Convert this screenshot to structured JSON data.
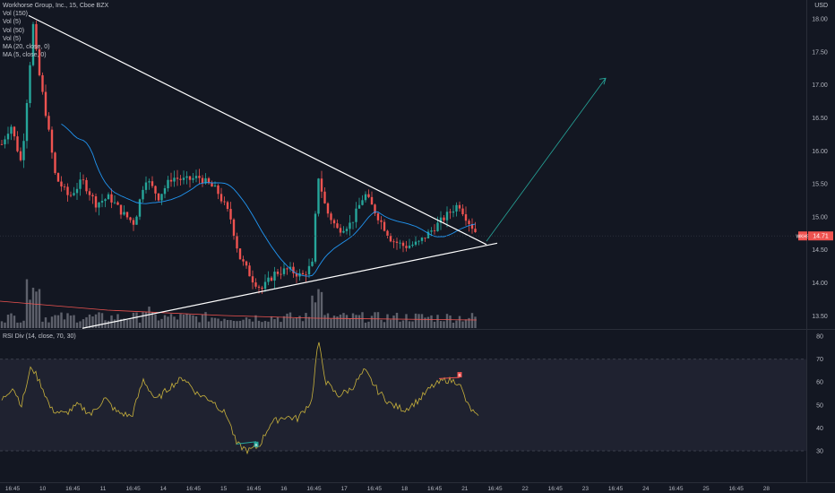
{
  "header": {
    "symbol": "Workhorse Group, Inc., 15, Cboe BZX",
    "currency": "USD",
    "studies": [
      "Vol (150)",
      "Vol (5)",
      "Vol (50)",
      "Vol (5)",
      "MA (20, close, 0)",
      "MA (5, close, 0)"
    ],
    "indicator": "RSI Div (14, close, 70, 30)"
  },
  "price_tag": {
    "label": "WKHS",
    "value": "14.71"
  },
  "colors": {
    "background": "#131722",
    "up": "#26a69a",
    "down": "#ef5350",
    "ma20": "#2196f3",
    "ma5": "#ffffff",
    "volume": "#787b86",
    "rsi": "#c9b23c",
    "divergence_bull": "#26a69a",
    "divergence_bear": "#ef5350"
  },
  "chart_data": [
    {
      "type": "candlestick",
      "title": "Workhorse Group, Inc., 15, Cboe BZX",
      "y_axis": {
        "ticks": [
          18.0,
          17.5,
          17.0,
          16.5,
          16.0,
          15.5,
          15.0,
          14.5,
          14.0,
          13.5
        ],
        "ylim": [
          13.3,
          18.2
        ],
        "position": "right"
      },
      "x_axis": {
        "ticks": [
          "16:45",
          "10",
          "16:45",
          "11",
          "16:45",
          "14",
          "16:45",
          "15",
          "16:45",
          "16",
          "16:45",
          "17",
          "16:45",
          "18",
          "16:45",
          "21",
          "16:45",
          "22",
          "16:45",
          "23",
          "16:45",
          "24",
          "16:45",
          "25",
          "16:45",
          "28"
        ]
      },
      "anchors": [
        {
          "t": 0,
          "p": 16.1
        },
        {
          "t": 10,
          "p": 16.4
        },
        {
          "t": 22,
          "p": 15.8
        },
        {
          "t": 35,
          "p": 17.9
        },
        {
          "t": 40,
          "p": 17.3
        },
        {
          "t": 50,
          "p": 16.5
        },
        {
          "t": 60,
          "p": 15.6
        },
        {
          "t": 75,
          "p": 15.3
        },
        {
          "t": 90,
          "p": 15.55
        },
        {
          "t": 105,
          "p": 15.2
        },
        {
          "t": 120,
          "p": 15.3
        },
        {
          "t": 135,
          "p": 15.05
        },
        {
          "t": 148,
          "p": 14.9
        },
        {
          "t": 160,
          "p": 15.6
        },
        {
          "t": 175,
          "p": 15.3
        },
        {
          "t": 190,
          "p": 15.6
        },
        {
          "t": 205,
          "p": 15.55
        },
        {
          "t": 220,
          "p": 15.6
        },
        {
          "t": 240,
          "p": 15.4
        },
        {
          "t": 255,
          "p": 15.0
        },
        {
          "t": 265,
          "p": 14.4
        },
        {
          "t": 280,
          "p": 14.05
        },
        {
          "t": 290,
          "p": 13.9
        },
        {
          "t": 305,
          "p": 14.15
        },
        {
          "t": 320,
          "p": 14.2
        },
        {
          "t": 335,
          "p": 14.1
        },
        {
          "t": 348,
          "p": 14.3
        },
        {
          "t": 352,
          "p": 15.7
        },
        {
          "t": 362,
          "p": 15.1
        },
        {
          "t": 375,
          "p": 14.8
        },
        {
          "t": 390,
          "p": 14.9
        },
        {
          "t": 405,
          "p": 15.35
        },
        {
          "t": 420,
          "p": 15.0
        },
        {
          "t": 435,
          "p": 14.65
        },
        {
          "t": 450,
          "p": 14.55
        },
        {
          "t": 465,
          "p": 14.6
        },
        {
          "t": 480,
          "p": 14.8
        },
        {
          "t": 495,
          "p": 15.0
        },
        {
          "t": 510,
          "p": 15.2
        },
        {
          "t": 520,
          "p": 14.95
        },
        {
          "t": 532,
          "p": 14.71
        }
      ],
      "trendlines": [
        {
          "from": {
            "t": 30,
            "p": 18.05
          },
          "to": {
            "t": 541,
            "p": 14.58
          },
          "color": "#ffffff"
        },
        {
          "from": {
            "t": 90,
            "p": 13.31
          },
          "to": {
            "t": 553,
            "p": 14.6
          },
          "color": "#ffffff"
        },
        {
          "from": {
            "t": 541,
            "p": 14.63
          },
          "to": {
            "t": 674,
            "p": 17.1
          },
          "color": "#26a69a",
          "arrow": true
        }
      ]
    },
    {
      "type": "line",
      "title": "RSI Div (14, close, 70, 30)",
      "y_axis": {
        "ticks": [
          80,
          70,
          60,
          50,
          40,
          30
        ],
        "ylim": [
          28,
          82
        ],
        "position": "right"
      },
      "bands": {
        "upper": 70,
        "lower": 30
      },
      "anchors": [
        {
          "t": 0,
          "v": 52
        },
        {
          "t": 12,
          "v": 58
        },
        {
          "t": 22,
          "v": 50
        },
        {
          "t": 33,
          "v": 67
        },
        {
          "t": 45,
          "v": 58
        },
        {
          "t": 55,
          "v": 48
        },
        {
          "t": 70,
          "v": 46
        },
        {
          "t": 85,
          "v": 50
        },
        {
          "t": 100,
          "v": 46
        },
        {
          "t": 115,
          "v": 53
        },
        {
          "t": 128,
          "v": 47
        },
        {
          "t": 145,
          "v": 45
        },
        {
          "t": 158,
          "v": 61
        },
        {
          "t": 172,
          "v": 52
        },
        {
          "t": 188,
          "v": 58
        },
        {
          "t": 203,
          "v": 62
        },
        {
          "t": 218,
          "v": 55
        },
        {
          "t": 235,
          "v": 52
        },
        {
          "t": 252,
          "v": 45
        },
        {
          "t": 262,
          "v": 33
        },
        {
          "t": 275,
          "v": 30
        },
        {
          "t": 287,
          "v": 32
        },
        {
          "t": 300,
          "v": 42
        },
        {
          "t": 315,
          "v": 45
        },
        {
          "t": 330,
          "v": 44
        },
        {
          "t": 346,
          "v": 52
        },
        {
          "t": 353,
          "v": 78
        },
        {
          "t": 362,
          "v": 60
        },
        {
          "t": 375,
          "v": 54
        },
        {
          "t": 390,
          "v": 57
        },
        {
          "t": 405,
          "v": 65
        },
        {
          "t": 420,
          "v": 56
        },
        {
          "t": 435,
          "v": 50
        },
        {
          "t": 450,
          "v": 48
        },
        {
          "t": 465,
          "v": 52
        },
        {
          "t": 480,
          "v": 58
        },
        {
          "t": 495,
          "v": 61
        },
        {
          "t": 510,
          "v": 60
        },
        {
          "t": 520,
          "v": 50
        },
        {
          "t": 532,
          "v": 44
        }
      ],
      "divergences": [
        {
          "kind": "bull",
          "from": {
            "t": 262,
            "v": 33
          },
          "to": {
            "t": 284,
            "v": 34
          },
          "label": "B"
        },
        {
          "kind": "bear",
          "from": {
            "t": 488,
            "v": 61.5
          },
          "to": {
            "t": 511,
            "v": 62
          },
          "label": "B"
        }
      ]
    }
  ]
}
